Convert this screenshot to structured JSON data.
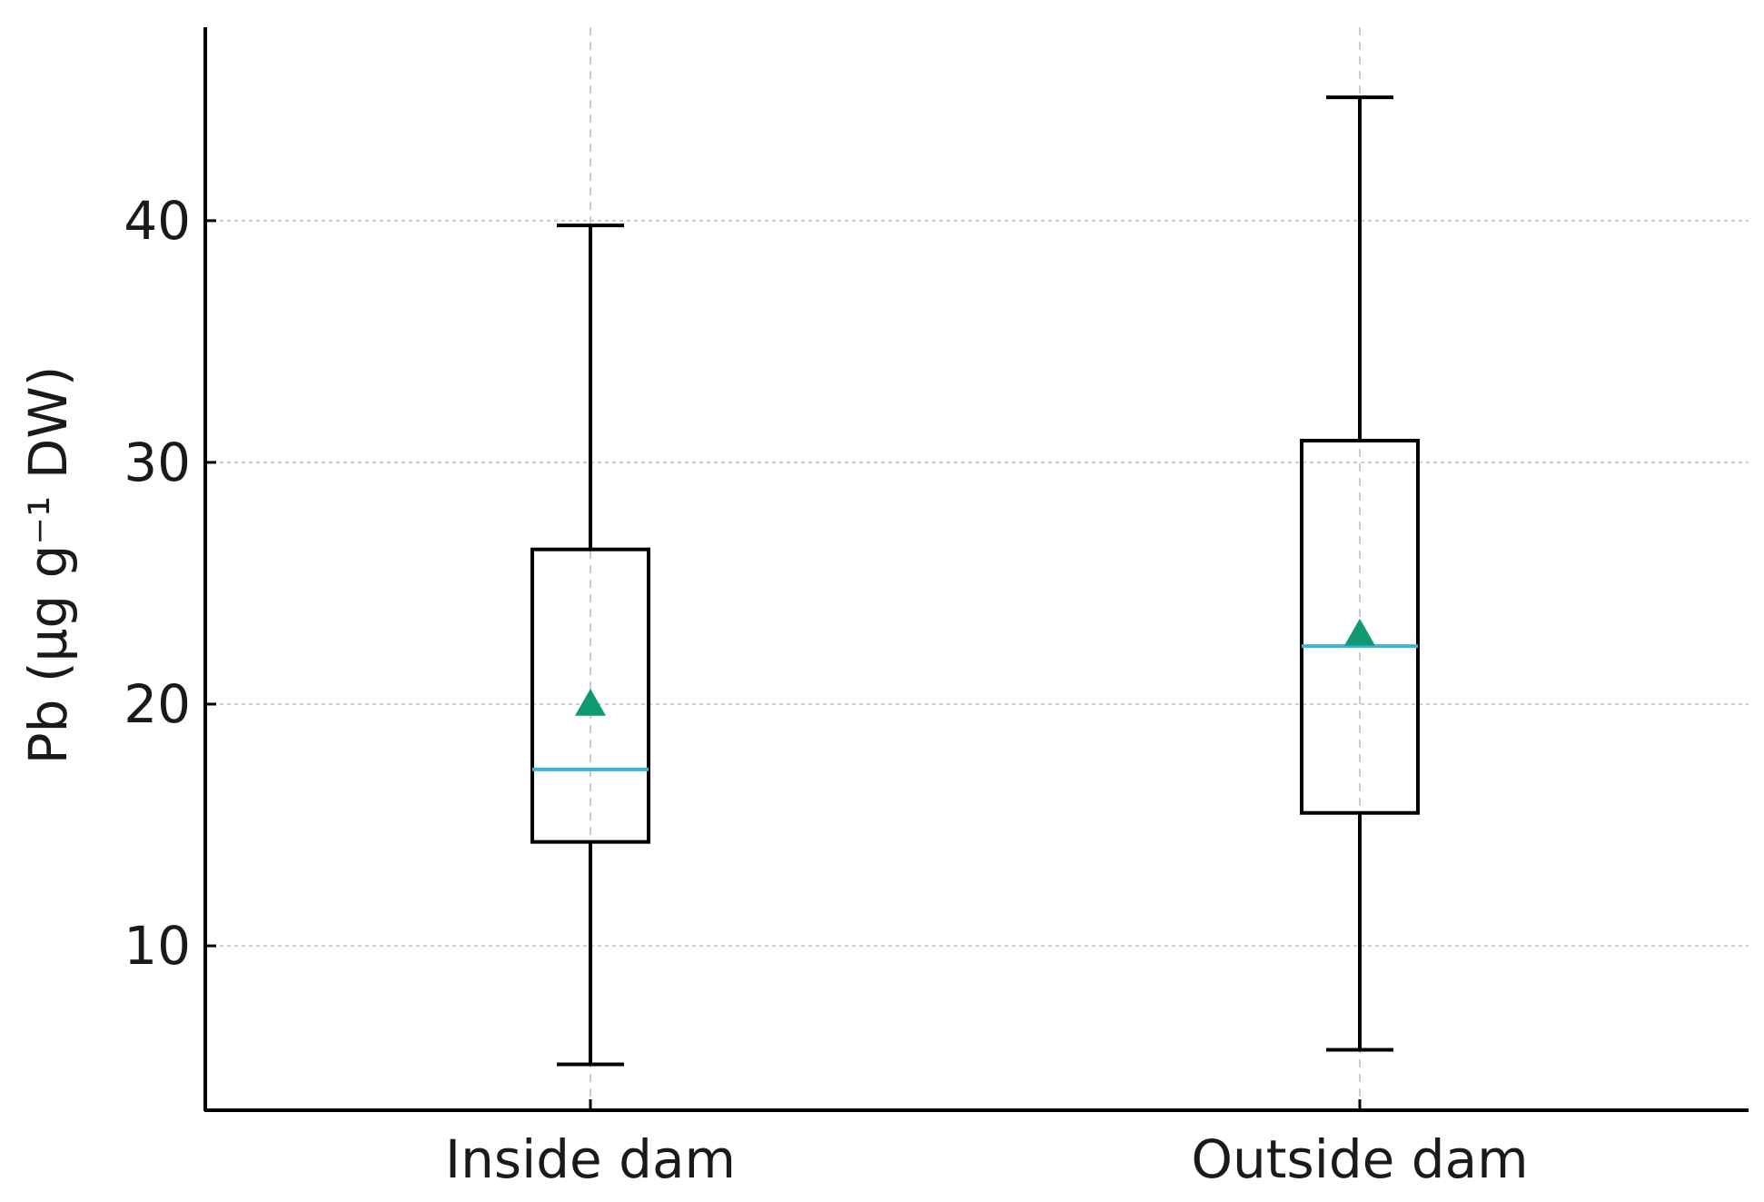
{
  "chart_data": {
    "type": "box",
    "title": "",
    "xlabel": "",
    "ylabel": "Pb (µg g⁻¹ DW)",
    "ylim": [
      3.2,
      48.0
    ],
    "yticks": [
      10,
      20,
      30,
      40
    ],
    "grid": true,
    "categories": [
      "Inside dam",
      "Outside dam"
    ],
    "boxes": [
      {
        "category": "Inside dam",
        "whisker_low": 5.1,
        "q1": 14.3,
        "median": 17.3,
        "q3": 26.4,
        "whisker_high": 39.8,
        "mean": 20.0
      },
      {
        "category": "Outside dam",
        "whisker_low": 5.7,
        "q1": 15.5,
        "median": 22.4,
        "q3": 30.9,
        "whisker_high": 45.1,
        "mean": 22.9
      }
    ],
    "colors": {
      "box": "#000000",
      "median": "#3bb3e0",
      "mean_marker": "#0f9a72",
      "grid": "#cccccc"
    }
  }
}
